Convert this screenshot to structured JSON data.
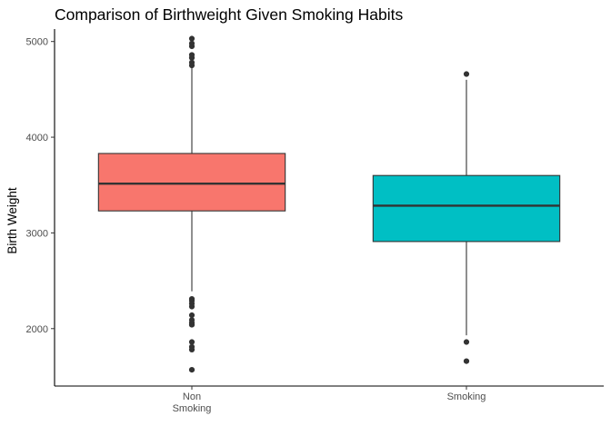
{
  "chart_data": {
    "type": "boxplot",
    "title": "Comparison of Birthweight Given Smoking Habits",
    "xlabel": "",
    "ylabel": "Birth Weight",
    "ylim": [
      1400,
      5130
    ],
    "yticks": [
      2000,
      3000,
      4000,
      5000
    ],
    "grid": false,
    "legend": "none",
    "categories": [
      {
        "label_lines": [
          "Non",
          "Smoking"
        ],
        "color": "#F8766D",
        "whisker_low": 2390,
        "q1": 3230,
        "median": 3515,
        "q3": 3830,
        "whisker_high": 4730,
        "outliers": [
          5030,
          4980,
          4950,
          4860,
          4830,
          4780,
          4750,
          2310,
          2290,
          2260,
          2230,
          2140,
          2090,
          2060,
          2040,
          1860,
          1810,
          1780,
          1570
        ]
      },
      {
        "label_lines": [
          "Smoking"
        ],
        "color": "#00BFC4",
        "whisker_low": 1930,
        "q1": 2910,
        "median": 3285,
        "q3": 3600,
        "whisker_high": 4600,
        "outliers": [
          4660,
          1860,
          1660
        ]
      }
    ]
  }
}
